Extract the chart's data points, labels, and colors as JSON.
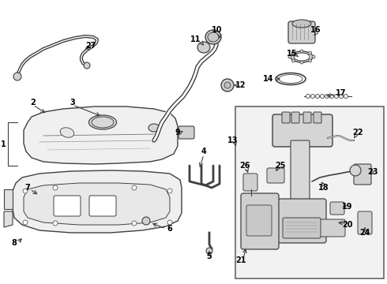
{
  "bg_color": "#ffffff",
  "line_color": "#404040",
  "label_color": "#000000",
  "fig_width": 4.9,
  "fig_height": 3.6,
  "dpi": 100,
  "label_fontsize": 7.0,
  "label_fontweight": "bold"
}
